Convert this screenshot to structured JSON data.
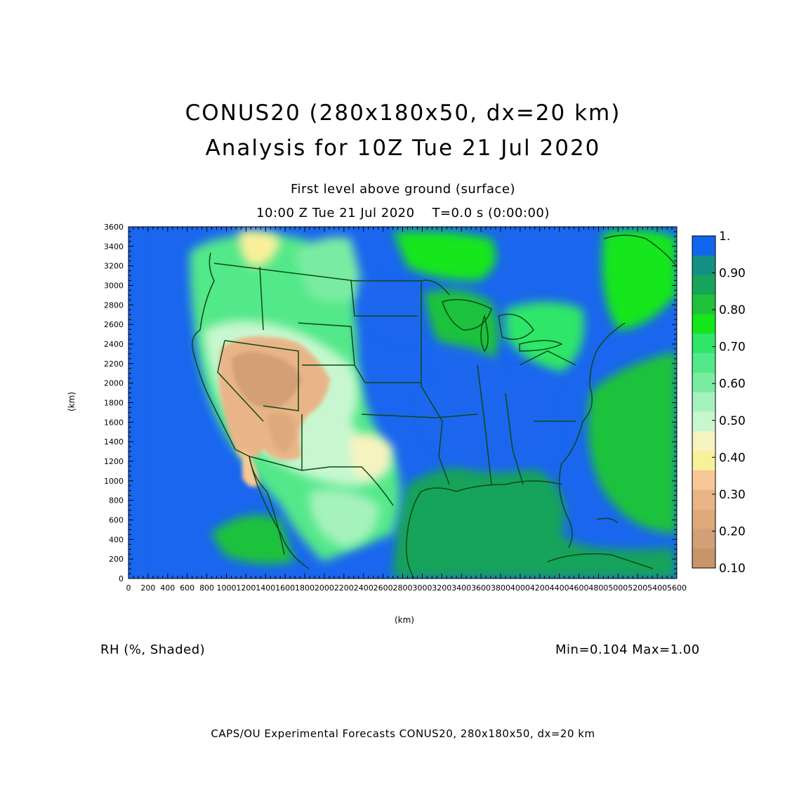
{
  "header": {
    "title_line1": "CONUS20 (280x180x50, dx=20 km)",
    "title_line2": "Analysis for 10Z Tue 21 Jul 2020",
    "level_label": "First level above ground (surface)",
    "time_label": "10:00 Z Tue 21 Jul 2020    T=0.0 s (0:00:00)"
  },
  "map": {
    "variable_label": "RH (%, Shaded)",
    "minmax_label": "Min=0.104 Max=1.00",
    "footer_credit": "CAPS/OU Experimental Forecasts  CONUS20, 280x180x50, dx=20 km",
    "boundary_color": "#0b4a16",
    "ocean_color": "#1a66ee",
    "dry_color": "#d2a47a"
  },
  "chart_data": {
    "type": "heatmap",
    "xlabel": "(km)",
    "ylabel": "(km)",
    "xlim": [
      0,
      5600
    ],
    "ylim": [
      0,
      3600
    ],
    "x_ticks": [
      "0",
      "200",
      "400",
      "600",
      "800",
      "1000",
      "1200",
      "1400",
      "1600",
      "1800",
      "2000",
      "2200",
      "2400",
      "2600",
      "2800",
      "3000",
      "3200",
      "3400",
      "3600",
      "3800",
      "4000",
      "4200",
      "4400",
      "4600",
      "4800",
      "5000",
      "5200",
      "5400",
      "5600"
    ],
    "y_ticks": [
      "0",
      "200",
      "400",
      "600",
      "800",
      "1000",
      "1200",
      "1400",
      "1600",
      "1800",
      "2000",
      "2200",
      "2400",
      "2600",
      "2800",
      "3000",
      "3200",
      "3400",
      "3600"
    ],
    "colorbar": {
      "labels": [
        "1.",
        "0.90",
        "0.80",
        "0.70",
        "0.60",
        "0.50",
        "0.40",
        "0.30",
        "0.20",
        "0.10"
      ],
      "colors": [
        "#1166ee",
        "#138f83",
        "#17a35a",
        "#1fc23a",
        "#14e61c",
        "#2ee668",
        "#53e889",
        "#7aeca2",
        "#a6f2bd",
        "#c8f7cf",
        "#f7f3c0",
        "#f9f09a",
        "#f8c796",
        "#e9b588",
        "#deaa7c",
        "#d29f76",
        "#c8946a"
      ]
    }
  }
}
